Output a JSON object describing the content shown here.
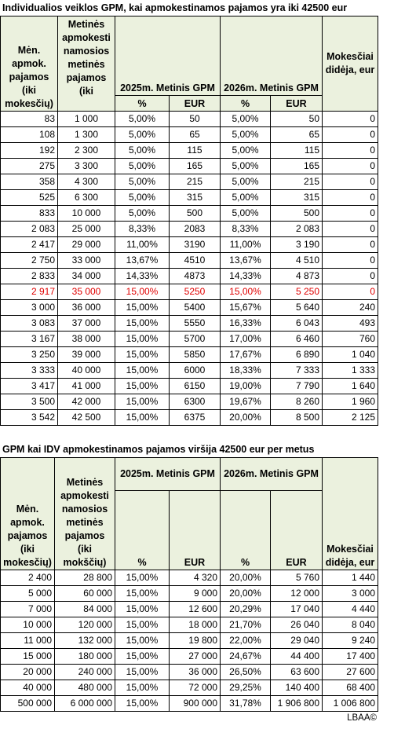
{
  "title1": "Individualios veiklos GPM, kai apmokestinamos pajamos yra iki 42500 eur",
  "table1": {
    "header": {
      "col1": "Mėn. apmok. pajamos (iki mokesčių)",
      "col2": "Metinės apmokesti namosios metinės pajamos (iki",
      "gpm2025": "2025m. Metinis GPM",
      "gpm2026": "2026m. Metinis GPM",
      "increase": "Mokesčiai didėja, eur",
      "pct2025": "%",
      "eur2025": "EUR",
      "pct2026": "%",
      "eur2026": "EUR"
    },
    "rows": [
      [
        "83",
        "1 000",
        "5,00%",
        "50",
        "5,00%",
        "50",
        "0"
      ],
      [
        "108",
        "1 300",
        "5,00%",
        "65",
        "5,00%",
        "65",
        "0"
      ],
      [
        "192",
        "2 300",
        "5,00%",
        "115",
        "5,00%",
        "115",
        "0"
      ],
      [
        "275",
        "3 300",
        "5,00%",
        "165",
        "5,00%",
        "165",
        "0"
      ],
      [
        "358",
        "4 300",
        "5,00%",
        "215",
        "5,00%",
        "215",
        "0"
      ],
      [
        "525",
        "6 300",
        "5,00%",
        "315",
        "5,00%",
        "315",
        "0"
      ],
      [
        "833",
        "10 000",
        "5,00%",
        "500",
        "5,00%",
        "500",
        "0"
      ],
      [
        "2 083",
        "25 000",
        "8,33%",
        "2083",
        "8,33%",
        "2 083",
        "0"
      ],
      [
        "2 417",
        "29 000",
        "11,00%",
        "3190",
        "11,00%",
        "3 190",
        "0"
      ],
      [
        "2 750",
        "33 000",
        "13,67%",
        "4510",
        "13,67%",
        "4 510",
        "0"
      ],
      [
        "2 833",
        "34 000",
        "14,33%",
        "4873",
        "14,33%",
        "4 873",
        "0"
      ],
      [
        "2 917",
        "35 000",
        "15,00%",
        "5250",
        "15,00%",
        "5 250",
        "0"
      ],
      [
        "3 000",
        "36 000",
        "15,00%",
        "5400",
        "15,67%",
        "5 640",
        "240"
      ],
      [
        "3 083",
        "37 000",
        "15,00%",
        "5550",
        "16,33%",
        "6 043",
        "493"
      ],
      [
        "3 167",
        "38 000",
        "15,00%",
        "5700",
        "17,00%",
        "6 460",
        "760"
      ],
      [
        "3 250",
        "39 000",
        "15,00%",
        "5850",
        "17,67%",
        "6 890",
        "1 040"
      ],
      [
        "3 333",
        "40 000",
        "15,00%",
        "6000",
        "18,33%",
        "7 333",
        "1 333"
      ],
      [
        "3 417",
        "41 000",
        "15,00%",
        "6150",
        "19,00%",
        "7 790",
        "1 640"
      ],
      [
        "3 500",
        "42 000",
        "15,00%",
        "6300",
        "19,67%",
        "8 260",
        "1 960"
      ],
      [
        "3 542",
        "42 500",
        "15,00%",
        "6375",
        "20,00%",
        "8 500",
        "2 125"
      ]
    ]
  },
  "title2": "GPM kai IDV apmokestinamos pajamos viršija 42500 eur per metus",
  "table2": {
    "header": {
      "col1": "Mėn. apmok. pajamos (iki mokesčių)",
      "col2": "Metinės apmokesti namosios metinės pajamos (iki mokščių)",
      "gpm2025": "2025m. Metinis GPM",
      "gpm2026": "2026m. Metinis GPM",
      "increase": "Mokesčiai didėja, eur",
      "pct2025": "%",
      "eur2025": "EUR",
      "pct2026": "%",
      "eur2026": "EUR"
    },
    "rows": [
      [
        "2 400",
        "28 800",
        "15,00%",
        "4 320",
        "20,00%",
        "5 760",
        "1 440"
      ],
      [
        "5 000",
        "60 000",
        "15,00%",
        "9 000",
        "20,00%",
        "12 000",
        "3 000"
      ],
      [
        "7 000",
        "84 000",
        "15,00%",
        "12 600",
        "20,29%",
        "17 040",
        "4 440"
      ],
      [
        "10 000",
        "120 000",
        "15,00%",
        "18 000",
        "21,70%",
        "26 040",
        "8 040"
      ],
      [
        "11 000",
        "132 000",
        "15,00%",
        "19 800",
        "22,00%",
        "29 040",
        "9 240"
      ],
      [
        "15 000",
        "180 000",
        "15,00%",
        "27 000",
        "24,67%",
        "44 400",
        "17 400"
      ],
      [
        "20 000",
        "240 000",
        "15,00%",
        "36 000",
        "26,50%",
        "63 600",
        "27 600"
      ],
      [
        "40 000",
        "480 000",
        "15,00%",
        "72 000",
        "29,25%",
        "140 400",
        "68 400"
      ],
      [
        "500 000",
        "6 000 000",
        "15,00%",
        "900 000",
        "31,78%",
        "1 906 800",
        "1 006 800"
      ]
    ]
  },
  "footer": "LBAA©"
}
